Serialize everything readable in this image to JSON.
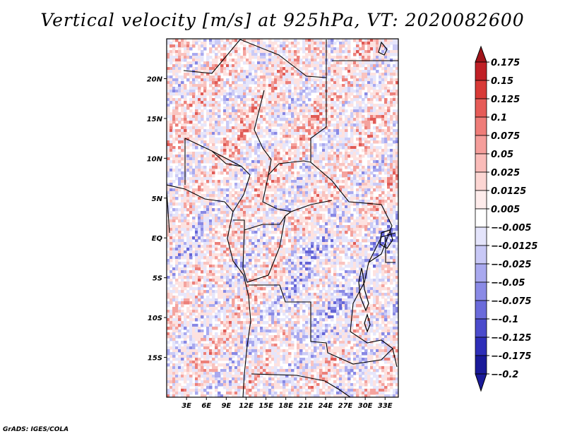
{
  "title": "Vertical velocity [m/s] at 925hPa, VT: 2020082600",
  "footer": "GrADS: IGES/COLA",
  "map": {
    "lon_range": [
      0,
      35
    ],
    "lat_range": [
      -20,
      25
    ],
    "lat_ticks": [
      {
        "value": 20,
        "label": "20N"
      },
      {
        "value": 15,
        "label": "15N"
      },
      {
        "value": 10,
        "label": "10N"
      },
      {
        "value": 5,
        "label": "5N"
      },
      {
        "value": 0,
        "label": "EQ"
      },
      {
        "value": -5,
        "label": "5S"
      },
      {
        "value": -10,
        "label": "10S"
      },
      {
        "value": -15,
        "label": "15S"
      }
    ],
    "lon_ticks": [
      {
        "value": 3,
        "label": "3E"
      },
      {
        "value": 6,
        "label": "6E"
      },
      {
        "value": 9,
        "label": "9E"
      },
      {
        "value": 12,
        "label": "12E"
      },
      {
        "value": 15,
        "label": "15E"
      },
      {
        "value": 18,
        "label": "18E"
      },
      {
        "value": 21,
        "label": "21E"
      },
      {
        "value": 24,
        "label": "24E"
      },
      {
        "value": 27,
        "label": "27E"
      },
      {
        "value": 30,
        "label": "30E"
      },
      {
        "value": 33,
        "label": "33E"
      }
    ]
  },
  "colorbar": {
    "levels": [
      {
        "label": "0.175",
        "color": "#a0141a"
      },
      {
        "label": "0.15",
        "color": "#c02026"
      },
      {
        "label": "0.125",
        "color": "#d83a37"
      },
      {
        "label": "0.1",
        "color": "#e65c58"
      },
      {
        "label": "0.075",
        "color": "#ef7d79"
      },
      {
        "label": "0.05",
        "color": "#f59e9b"
      },
      {
        "label": "0.025",
        "color": "#fabcb9"
      },
      {
        "label": "0.0125",
        "color": "#fcd6d3"
      },
      {
        "label": "0.005",
        "color": "#feeceb"
      },
      {
        "label": "−-0.005",
        "color": "#ffffff"
      },
      {
        "label": "−-0.0125",
        "color": "#e4e4fb"
      },
      {
        "label": "−-0.025",
        "color": "#c8c8f6"
      },
      {
        "label": "−-0.05",
        "color": "#a9a9ef"
      },
      {
        "label": "−-0.075",
        "color": "#8a8ae6"
      },
      {
        "label": "−-0.1",
        "color": "#6b6bdb"
      },
      {
        "label": "−-0.125",
        "color": "#4b4bcc"
      },
      {
        "label": "−-0.175",
        "color": "#2e2eb8"
      },
      {
        "label": "−-0.2",
        "color": "#1a1a99"
      }
    ],
    "top_arrow_color": "#a0141a",
    "bottom_arrow_color": "#1a1a99"
  }
}
